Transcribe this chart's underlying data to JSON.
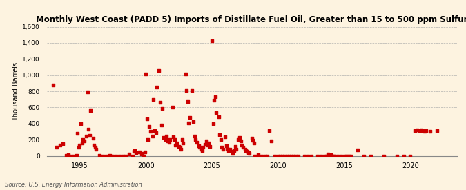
{
  "title": "Monthly West Coast (PADD 5) Imports of Distillate Fuel Oil, Greater than 15 to 500 ppm Sulfur",
  "ylabel": "Thousand Barrels",
  "background_color": "#fdf3e0",
  "dot_color": "#cc0000",
  "ylim": [
    0,
    1600
  ],
  "yticks": [
    0,
    200,
    400,
    600,
    800,
    1000,
    1200,
    1400,
    1600
  ],
  "ytick_labels": [
    "0",
    "200",
    "400",
    "600",
    "800",
    "1,000",
    "1,200",
    "1,400",
    "1,600"
  ],
  "source": "Source: U.S. Energy Information Administration",
  "xlim": [
    1992.5,
    2023.5
  ],
  "xticks": [
    1995,
    2000,
    2005,
    2010,
    2015,
    2020
  ],
  "data": [
    [
      1993.0,
      880
    ],
    [
      1993.25,
      110
    ],
    [
      1993.5,
      130
    ],
    [
      1993.75,
      150
    ],
    [
      1994.0,
      5
    ],
    [
      1994.08,
      0
    ],
    [
      1994.17,
      15
    ],
    [
      1994.25,
      0
    ],
    [
      1994.5,
      0
    ],
    [
      1994.75,
      8
    ],
    [
      1994.83,
      280
    ],
    [
      1994.92,
      110
    ],
    [
      1995.0,
      130
    ],
    [
      1995.08,
      400
    ],
    [
      1995.17,
      155
    ],
    [
      1995.25,
      205
    ],
    [
      1995.33,
      185
    ],
    [
      1995.5,
      245
    ],
    [
      1995.58,
      790
    ],
    [
      1995.67,
      330
    ],
    [
      1995.75,
      255
    ],
    [
      1995.83,
      560
    ],
    [
      1996.0,
      215
    ],
    [
      1996.08,
      135
    ],
    [
      1996.17,
      105
    ],
    [
      1996.25,
      80
    ],
    [
      1996.5,
      5
    ],
    [
      1996.75,
      0
    ],
    [
      1997.0,
      0
    ],
    [
      1997.25,
      8
    ],
    [
      1997.5,
      0
    ],
    [
      1997.75,
      0
    ],
    [
      1998.0,
      0
    ],
    [
      1998.25,
      0
    ],
    [
      1998.5,
      0
    ],
    [
      1998.75,
      25
    ],
    [
      1999.0,
      0
    ],
    [
      1999.08,
      55
    ],
    [
      1999.17,
      65
    ],
    [
      1999.25,
      40
    ],
    [
      1999.5,
      45
    ],
    [
      1999.67,
      25
    ],
    [
      1999.75,
      30
    ],
    [
      1999.83,
      0
    ],
    [
      1999.92,
      45
    ],
    [
      2000.0,
      1010
    ],
    [
      2000.08,
      460
    ],
    [
      2000.17,
      205
    ],
    [
      2000.25,
      360
    ],
    [
      2000.33,
      300
    ],
    [
      2000.5,
      245
    ],
    [
      2000.58,
      695
    ],
    [
      2000.67,
      315
    ],
    [
      2000.75,
      285
    ],
    [
      2000.83,
      850
    ],
    [
      2001.0,
      1060
    ],
    [
      2001.08,
      665
    ],
    [
      2001.17,
      385
    ],
    [
      2001.25,
      585
    ],
    [
      2001.33,
      225
    ],
    [
      2001.5,
      205
    ],
    [
      2001.58,
      245
    ],
    [
      2001.67,
      185
    ],
    [
      2001.75,
      165
    ],
    [
      2001.83,
      205
    ],
    [
      2002.0,
      600
    ],
    [
      2002.08,
      235
    ],
    [
      2002.17,
      205
    ],
    [
      2002.25,
      135
    ],
    [
      2002.33,
      155
    ],
    [
      2002.5,
      115
    ],
    [
      2002.58,
      105
    ],
    [
      2002.67,
      80
    ],
    [
      2002.75,
      205
    ],
    [
      2002.83,
      155
    ],
    [
      2003.0,
      1010
    ],
    [
      2003.08,
      805
    ],
    [
      2003.17,
      675
    ],
    [
      2003.25,
      405
    ],
    [
      2003.33,
      475
    ],
    [
      2003.5,
      805
    ],
    [
      2003.58,
      425
    ],
    [
      2003.67,
      245
    ],
    [
      2003.75,
      205
    ],
    [
      2003.83,
      165
    ],
    [
      2004.0,
      125
    ],
    [
      2004.08,
      105
    ],
    [
      2004.17,
      80
    ],
    [
      2004.25,
      60
    ],
    [
      2004.33,
      105
    ],
    [
      2004.5,
      145
    ],
    [
      2004.58,
      185
    ],
    [
      2004.67,
      135
    ],
    [
      2004.75,
      155
    ],
    [
      2004.83,
      115
    ],
    [
      2005.0,
      1425
    ],
    [
      2005.08,
      395
    ],
    [
      2005.17,
      685
    ],
    [
      2005.25,
      735
    ],
    [
      2005.33,
      535
    ],
    [
      2005.5,
      485
    ],
    [
      2005.58,
      265
    ],
    [
      2005.67,
      205
    ],
    [
      2005.75,
      105
    ],
    [
      2005.83,
      80
    ],
    [
      2006.0,
      235
    ],
    [
      2006.08,
      125
    ],
    [
      2006.17,
      90
    ],
    [
      2006.25,
      60
    ],
    [
      2006.33,
      80
    ],
    [
      2006.5,
      55
    ],
    [
      2006.58,
      30
    ],
    [
      2006.67,
      60
    ],
    [
      2006.75,
      115
    ],
    [
      2006.83,
      80
    ],
    [
      2007.0,
      205
    ],
    [
      2007.08,
      225
    ],
    [
      2007.17,
      185
    ],
    [
      2007.25,
      135
    ],
    [
      2007.33,
      105
    ],
    [
      2007.5,
      80
    ],
    [
      2007.58,
      60
    ],
    [
      2007.67,
      55
    ],
    [
      2007.75,
      40
    ],
    [
      2007.83,
      30
    ],
    [
      2008.0,
      215
    ],
    [
      2008.08,
      195
    ],
    [
      2008.17,
      160
    ],
    [
      2008.25,
      0
    ],
    [
      2008.5,
      10
    ],
    [
      2008.75,
      0
    ],
    [
      2009.0,
      0
    ],
    [
      2009.17,
      0
    ],
    [
      2009.33,
      310
    ],
    [
      2009.5,
      185
    ],
    [
      2009.75,
      0
    ],
    [
      2010.0,
      0
    ],
    [
      2010.17,
      0
    ],
    [
      2010.33,
      0
    ],
    [
      2010.5,
      0
    ],
    [
      2010.67,
      0
    ],
    [
      2010.83,
      0
    ],
    [
      2011.0,
      0
    ],
    [
      2011.17,
      0
    ],
    [
      2011.33,
      0
    ],
    [
      2011.5,
      0
    ],
    [
      2012.0,
      0
    ],
    [
      2012.25,
      0
    ],
    [
      2012.5,
      0
    ],
    [
      2013.0,
      0
    ],
    [
      2013.25,
      0
    ],
    [
      2013.5,
      0
    ],
    [
      2013.67,
      0
    ],
    [
      2013.75,
      20
    ],
    [
      2013.83,
      10
    ],
    [
      2014.0,
      10
    ],
    [
      2014.08,
      0
    ],
    [
      2014.17,
      0
    ],
    [
      2014.25,
      0
    ],
    [
      2014.5,
      0
    ],
    [
      2014.75,
      0
    ],
    [
      2015.0,
      0
    ],
    [
      2015.17,
      0
    ],
    [
      2015.33,
      0
    ],
    [
      2015.5,
      0
    ],
    [
      2016.0,
      70
    ],
    [
      2016.5,
      0
    ],
    [
      2017.0,
      0
    ],
    [
      2018.0,
      0
    ],
    [
      2019.0,
      0
    ],
    [
      2019.5,
      0
    ],
    [
      2020.0,
      0
    ],
    [
      2020.33,
      310
    ],
    [
      2020.5,
      320
    ],
    [
      2020.67,
      315
    ],
    [
      2020.75,
      310
    ],
    [
      2020.83,
      320
    ],
    [
      2020.92,
      315
    ],
    [
      2021.0,
      310
    ],
    [
      2021.08,
      305
    ],
    [
      2021.17,
      310
    ],
    [
      2021.5,
      300
    ],
    [
      2022.0,
      310
    ]
  ]
}
